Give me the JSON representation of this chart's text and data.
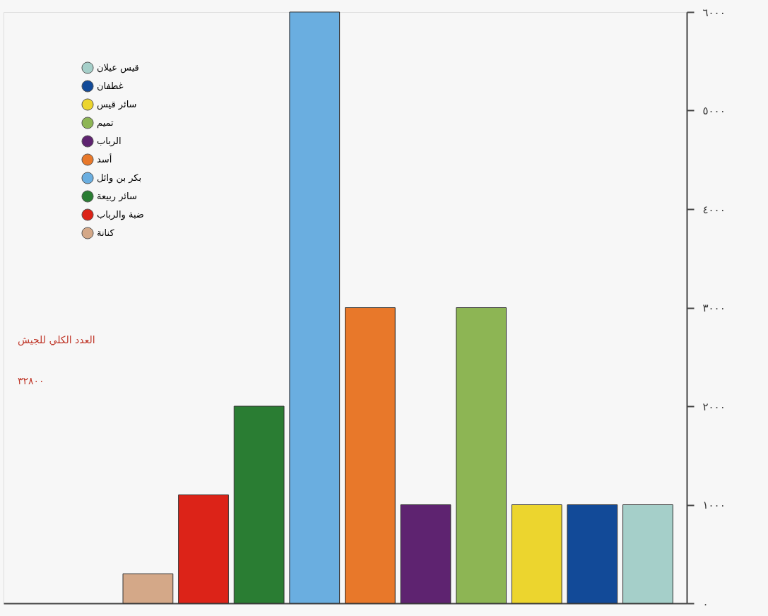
{
  "chart_data": {
    "type": "bar",
    "categories": [
      null,
      null,
      null,
      null,
      null,
      null,
      null,
      null,
      null,
      null
    ],
    "series": [
      {
        "name": "قيس عيلان",
        "color": "#a5cfc9",
        "values": [
          null,
          null,
          null,
          null,
          null,
          null,
          null,
          null,
          null,
          1000
        ]
      },
      {
        "name": "غطفان",
        "color": "#124a98",
        "values": [
          null,
          null,
          null,
          null,
          null,
          null,
          null,
          null,
          1000,
          null
        ]
      },
      {
        "name": "سائر قيس",
        "color": "#ecd52e",
        "values": [
          null,
          null,
          null,
          null,
          null,
          null,
          null,
          1000,
          null,
          null
        ]
      },
      {
        "name": "تميم",
        "color": "#8db554",
        "values": [
          null,
          null,
          null,
          null,
          null,
          null,
          3000,
          null,
          null,
          null
        ]
      },
      {
        "name": "الرباب",
        "color": "#5e2370",
        "values": [
          null,
          null,
          null,
          null,
          null,
          1000,
          null,
          null,
          null,
          null
        ]
      },
      {
        "name": "أسد",
        "color": "#e8782a",
        "values": [
          null,
          null,
          null,
          null,
          3000,
          null,
          null,
          null,
          null,
          null
        ]
      },
      {
        "name": "بكر بن وائل",
        "color": "#6aaee0",
        "values": [
          null,
          null,
          null,
          6000,
          null,
          null,
          null,
          null,
          null,
          null
        ]
      },
      {
        "name": "سائر ربيعة",
        "color": "#2a7d33",
        "values": [
          null,
          null,
          2000,
          null,
          null,
          null,
          null,
          null,
          null,
          null
        ]
      },
      {
        "name": "ضبة والرباب",
        "color": "#dc2318",
        "values": [
          null,
          1100,
          null,
          null,
          null,
          null,
          null,
          null,
          null,
          null
        ]
      },
      {
        "name": "كنانة",
        "color": "#d4a888",
        "values": [
          300,
          null,
          null,
          null,
          null,
          null,
          null,
          null,
          null,
          null
        ]
      }
    ],
    "ylim": [
      0,
      6000
    ],
    "yticks": [
      {
        "value": 0,
        "label": "٠"
      },
      {
        "value": 1000,
        "label": "١٠٠٠"
      },
      {
        "value": 2000,
        "label": "٢٠٠٠"
      },
      {
        "value": 3000,
        "label": "٣٠٠٠"
      },
      {
        "value": 4000,
        "label": "٤٠٠٠"
      },
      {
        "value": 5000,
        "label": "٥٠٠٠"
      },
      {
        "value": 6000,
        "label": "٦٠٠٠"
      }
    ],
    "annotations": [
      "العدد الكلي للجيش",
      "٣٢٨٠٠"
    ],
    "legend": "top left",
    "stacked": true,
    "grid": false
  }
}
